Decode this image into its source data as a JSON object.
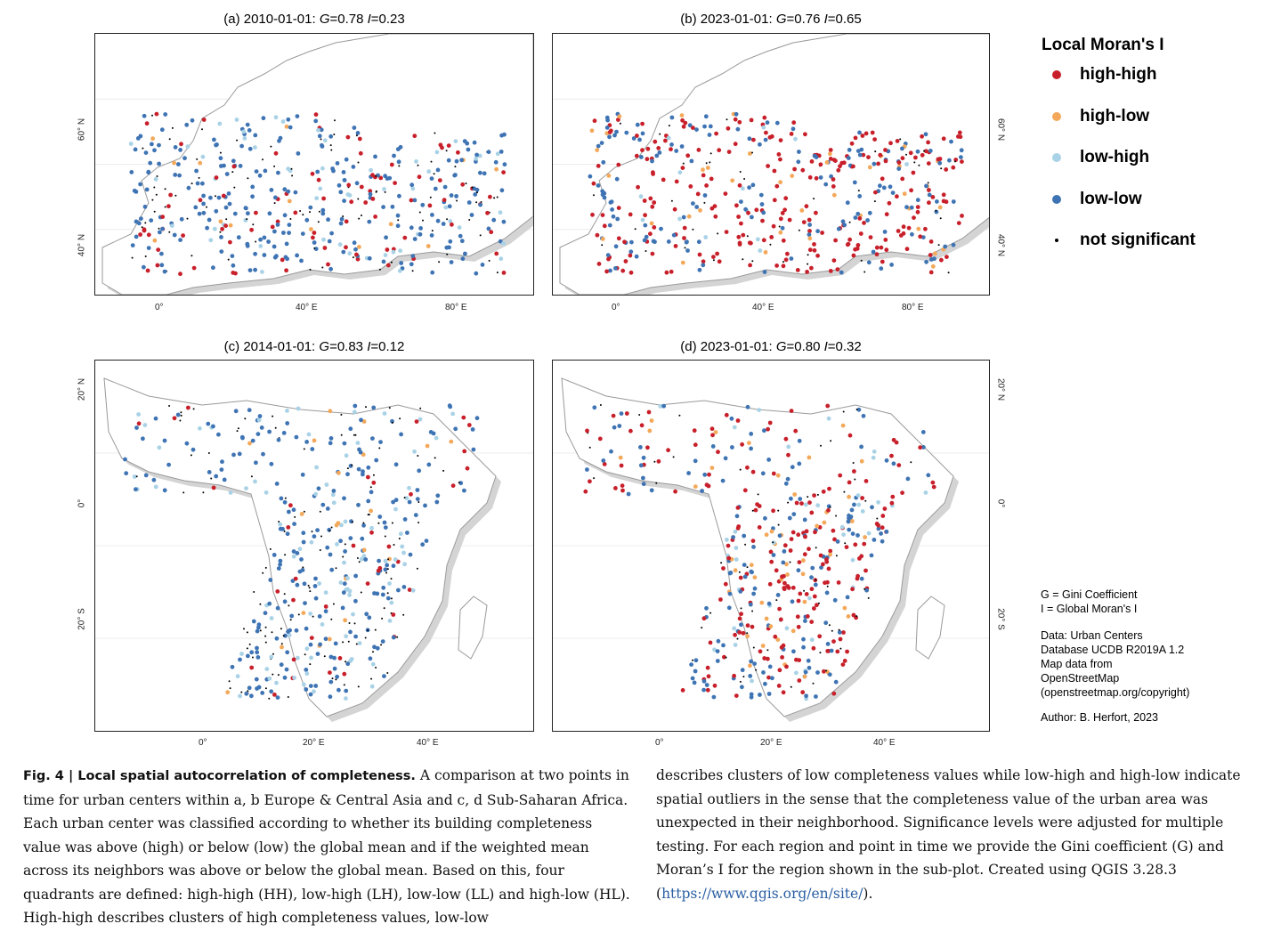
{
  "panels": [
    {
      "id": "a",
      "title_prefix": "(a) 2010-01-01: ",
      "g_label": "G",
      "g_value": "=0.78 ",
      "i_label": "I",
      "i_value": "=0.23",
      "x_ticks": [
        "0°",
        "40° E",
        "80° E"
      ],
      "y_ticks": [
        "60° N",
        "40° N"
      ],
      "y_side": "left"
    },
    {
      "id": "b",
      "title_prefix": "(b) 2023-01-01: ",
      "g_label": "G",
      "g_value": "=0.76 ",
      "i_label": "I",
      "i_value": "=0.65",
      "x_ticks": [
        "0°",
        "40° E",
        "80° E"
      ],
      "y_ticks": [
        "60° N",
        "40° N"
      ],
      "y_side": "right"
    },
    {
      "id": "c",
      "title_prefix": "(c) 2014-01-01: ",
      "g_label": "G",
      "g_value": "=0.83 ",
      "i_label": "I",
      "i_value": "=0.12",
      "x_ticks": [
        "0°",
        "20° E",
        "40° E"
      ],
      "y_ticks": [
        "20° N",
        "0°",
        "20° S"
      ],
      "y_side": "left"
    },
    {
      "id": "d",
      "title_prefix": "(d) 2023-01-01: ",
      "g_label": "G",
      "g_value": "=0.80 ",
      "i_label": "I",
      "i_value": "=0.32",
      "x_ticks": [
        "0°",
        "20° E",
        "40° E"
      ],
      "y_ticks": [
        "20° N",
        "0°",
        "20° S"
      ],
      "y_side": "right"
    }
  ],
  "legend": {
    "title": "Local Moran's I",
    "items": [
      {
        "label": "high-high",
        "color": "#c8202b"
      },
      {
        "label": "high-low",
        "color": "#f4a85a"
      },
      {
        "label": "low-high",
        "color": "#a9d2e6"
      },
      {
        "label": "low-low",
        "color": "#3f74b4"
      },
      {
        "label": "not significant",
        "color": "#000000"
      }
    ]
  },
  "notes": {
    "g_line": "G = Gini Coefficient",
    "i_line": "I = Global Moran's I",
    "data_lines": [
      "Data: Urban Centers",
      "Database UCDB R2019A 1.2",
      "Map data from",
      "OpenStreetMap",
      "(openstreetmap.org/copyright)"
    ],
    "author": "Author: B. Herfort, 2023"
  },
  "caption": {
    "fig_label": "Fig. 4 | Local spatial autocorrelation of completeness.",
    "left_text": " A comparison at two points in time for urban centers within a, b Europe & Central Asia and c, d Sub-Saharan Africa. Each urban center was classified according to whether its building completeness value was above (high) or below (low) the global mean and if the weighted mean across its neighbors was above or below the global mean. Based on this, four quadrants are defined: high-high (HH), low-high (LH), low-low (LL) and high-low (HL). High-high describes clusters of high completeness values, low-low",
    "right_text": "describes clusters of low completeness values while low-high and high-low indicate spatial outliers in the sense that the completeness value of the urban area was unexpected in their neighborhood. Significance levels were adjusted for multiple testing. For each region and point in time we provide the Gini coefficient (G) and Moran’s I for the region shown in the sub-plot. Created using QGIS 3.28.3 (",
    "link": "https://www.qgis.org/en/site/",
    "end": ")."
  }
}
